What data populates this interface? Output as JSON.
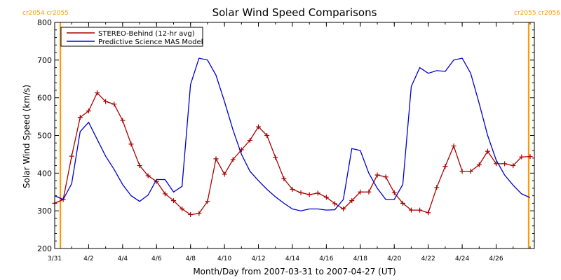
{
  "chart_data": {
    "type": "line",
    "title": "Solar Wind Speed Comparisons",
    "xlabel": "Month/Day from 2007-03-31 to 2007-04-27 (UT)",
    "ylabel": "Solar Wind Speed (km/s)",
    "xlim": [
      "2007-03-31T00:00",
      "2007-04-28T06:00"
    ],
    "ylim": [
      200,
      800
    ],
    "yticks": [
      200,
      300,
      400,
      500,
      600,
      700,
      800
    ],
    "xticks": [
      {
        "date": "2007-03-31",
        "label": "3/31"
      },
      {
        "date": "2007-04-02",
        "label": "4/2"
      },
      {
        "date": "2007-04-04",
        "label": "4/4"
      },
      {
        "date": "2007-04-06",
        "label": "4/6"
      },
      {
        "date": "2007-04-08",
        "label": "4/8"
      },
      {
        "date": "2007-04-10",
        "label": "4/10"
      },
      {
        "date": "2007-04-12",
        "label": "4/12"
      },
      {
        "date": "2007-04-14",
        "label": "4/14"
      },
      {
        "date": "2007-04-16",
        "label": "4/16"
      },
      {
        "date": "2007-04-18",
        "label": "4/18"
      },
      {
        "date": "2007-04-20",
        "label": "4/20"
      },
      {
        "date": "2007-04-22",
        "label": "4/22"
      },
      {
        "date": "2007-04-24",
        "label": "4/24"
      },
      {
        "date": "2007-04-26",
        "label": "4/26"
      }
    ],
    "carrington_markers": [
      {
        "date": "2007-03-31T08:00",
        "label": "cr2054 cr2055",
        "color": "#ff9900"
      },
      {
        "date": "2007-04-27T22:00",
        "label": "cr2055 cr2056",
        "color": "#ff9900"
      }
    ],
    "legend": {
      "position": "top-left"
    },
    "series": [
      {
        "name": "STEREO-Behind (12-hr avg)",
        "color": "#aa0000",
        "marker": "+",
        "x": [
          "2007-03-31T00:00",
          "2007-03-31T12:00",
          "2007-04-01T00:00",
          "2007-04-01T12:00",
          "2007-04-02T00:00",
          "2007-04-02T12:00",
          "2007-04-03T00:00",
          "2007-04-03T12:00",
          "2007-04-04T00:00",
          "2007-04-04T12:00",
          "2007-04-05T00:00",
          "2007-04-05T12:00",
          "2007-04-06T00:00",
          "2007-04-06T12:00",
          "2007-04-07T00:00",
          "2007-04-07T12:00",
          "2007-04-08T00:00",
          "2007-04-08T12:00",
          "2007-04-09T00:00",
          "2007-04-09T12:00",
          "2007-04-10T00:00",
          "2007-04-10T12:00",
          "2007-04-11T00:00",
          "2007-04-11T12:00",
          "2007-04-12T00:00",
          "2007-04-12T12:00",
          "2007-04-13T00:00",
          "2007-04-13T12:00",
          "2007-04-14T00:00",
          "2007-04-14T12:00",
          "2007-04-15T00:00",
          "2007-04-15T12:00",
          "2007-04-16T00:00",
          "2007-04-16T12:00",
          "2007-04-17T00:00",
          "2007-04-17T12:00",
          "2007-04-18T00:00",
          "2007-04-18T12:00",
          "2007-04-19T00:00",
          "2007-04-19T12:00",
          "2007-04-20T00:00",
          "2007-04-20T12:00",
          "2007-04-21T00:00",
          "2007-04-21T12:00",
          "2007-04-22T00:00",
          "2007-04-22T12:00",
          "2007-04-23T00:00",
          "2007-04-23T12:00",
          "2007-04-24T00:00",
          "2007-04-24T12:00",
          "2007-04-25T00:00",
          "2007-04-25T12:00",
          "2007-04-26T00:00",
          "2007-04-26T12:00",
          "2007-04-27T00:00",
          "2007-04-27T12:00",
          "2007-04-28T00:00"
        ],
        "y": [
          320,
          330,
          445,
          548,
          565,
          613,
          590,
          583,
          540,
          477,
          420,
          393,
          378,
          345,
          327,
          305,
          290,
          293,
          325,
          438,
          397,
          436,
          462,
          487,
          523,
          500,
          442,
          385,
          357,
          348,
          343,
          347,
          336,
          319,
          305,
          327,
          350,
          350,
          395,
          390,
          348,
          320,
          302,
          302,
          295,
          362,
          418,
          472,
          405,
          405,
          422,
          458,
          425,
          425,
          420,
          443,
          444
        ]
      },
      {
        "name": "Predictive Science MAS Model",
        "color": "#0000cc",
        "marker": "none",
        "x": [
          "2007-03-31T00:00",
          "2007-03-31T12:00",
          "2007-04-01T00:00",
          "2007-04-01T12:00",
          "2007-04-02T00:00",
          "2007-04-02T12:00",
          "2007-04-03T00:00",
          "2007-04-03T12:00",
          "2007-04-04T00:00",
          "2007-04-04T12:00",
          "2007-04-05T00:00",
          "2007-04-05T12:00",
          "2007-04-06T00:00",
          "2007-04-06T12:00",
          "2007-04-07T00:00",
          "2007-04-07T12:00",
          "2007-04-08T00:00",
          "2007-04-08T12:00",
          "2007-04-09T00:00",
          "2007-04-09T12:00",
          "2007-04-10T00:00",
          "2007-04-10T12:00",
          "2007-04-11T00:00",
          "2007-04-11T12:00",
          "2007-04-12T00:00",
          "2007-04-12T12:00",
          "2007-04-13T00:00",
          "2007-04-13T12:00",
          "2007-04-14T00:00",
          "2007-04-14T12:00",
          "2007-04-15T00:00",
          "2007-04-15T12:00",
          "2007-04-16T00:00",
          "2007-04-16T12:00",
          "2007-04-17T00:00",
          "2007-04-17T12:00",
          "2007-04-18T00:00",
          "2007-04-18T12:00",
          "2007-04-19T00:00",
          "2007-04-19T12:00",
          "2007-04-20T00:00",
          "2007-04-20T12:00",
          "2007-04-21T00:00",
          "2007-04-21T12:00",
          "2007-04-22T00:00",
          "2007-04-22T12:00",
          "2007-04-23T00:00",
          "2007-04-23T12:00",
          "2007-04-24T00:00",
          "2007-04-24T12:00",
          "2007-04-25T00:00",
          "2007-04-25T12:00",
          "2007-04-26T00:00",
          "2007-04-26T12:00",
          "2007-04-27T00:00",
          "2007-04-27T12:00",
          "2007-04-28T00:00"
        ],
        "y": [
          340,
          330,
          372,
          510,
          535,
          490,
          445,
          410,
          370,
          340,
          325,
          342,
          383,
          383,
          350,
          365,
          635,
          705,
          700,
          660,
          590,
          515,
          450,
          405,
          380,
          357,
          337,
          320,
          305,
          300,
          305,
          305,
          302,
          303,
          330,
          465,
          460,
          400,
          360,
          330,
          330,
          370,
          630,
          680,
          665,
          672,
          670,
          700,
          705,
          665,
          585,
          500,
          435,
          395,
          368,
          345,
          335
        ]
      }
    ]
  }
}
